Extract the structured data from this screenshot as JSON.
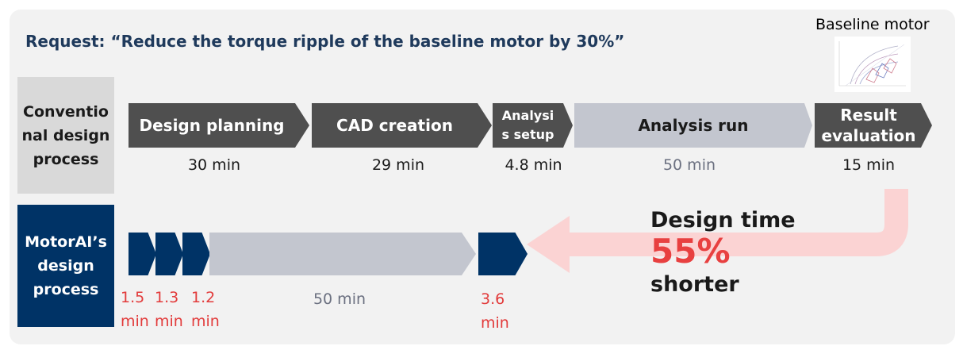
{
  "request": "Request: “Reduce the torque ripple of the baseline motor by 30%”",
  "baseline_label": "Baseline motor",
  "conventional": {
    "label": "Conventio\nnal design\nprocess",
    "steps": [
      {
        "label": "Design planning",
        "time": "30 min"
      },
      {
        "label": "CAD creation",
        "time": "29 min"
      },
      {
        "label": "Analysi\ns setup",
        "time": "4.8 min"
      },
      {
        "label": "Analysis run",
        "time": "50 min"
      },
      {
        "label": "Result\nevaluation",
        "time": "15 min"
      }
    ]
  },
  "motorai": {
    "label": "MotorAI’s\ndesign\nprocess",
    "times": [
      "1.5\nmin",
      "1.3\nmin",
      "1.2\nmin",
      "50 min",
      "3.6\nmin"
    ]
  },
  "saving": {
    "line1": "Design time",
    "percent": "55%",
    "line3": "shorter"
  },
  "colors": {
    "dark_step": "#4f4f4f",
    "analysis_step": "#c3c6cf",
    "navy": "#003366",
    "accent_red": "#e84040",
    "arrow_pink": "#fbd3d3"
  }
}
